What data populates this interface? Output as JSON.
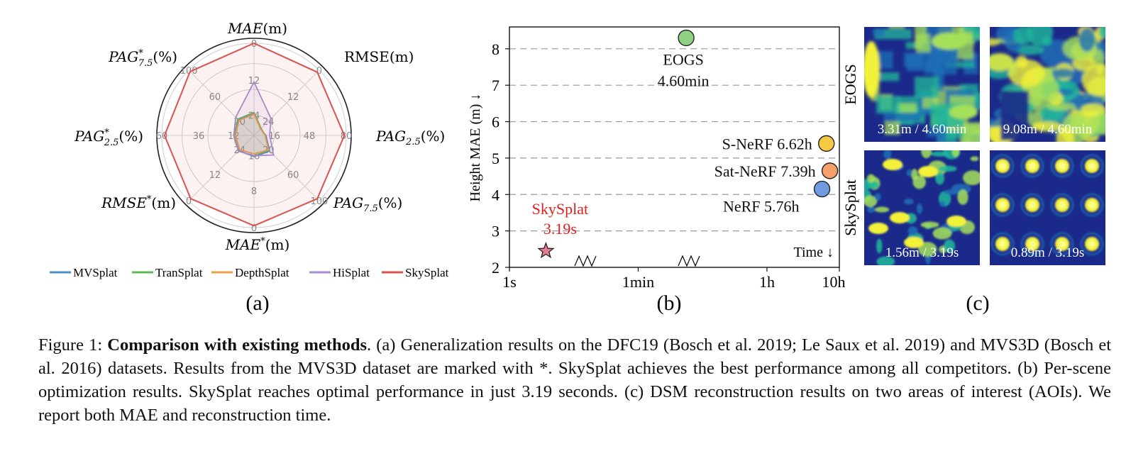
{
  "panel_labels": [
    "(a)",
    "(b)",
    "(c)"
  ],
  "chart_data": [
    {
      "type": "radar",
      "axes": [
        {
          "label": "MAE(m)",
          "ticks": [
            "0",
            "12",
            "24"
          ]
        },
        {
          "label": "RMSE(m)",
          "ticks": [
            "0",
            "12",
            "24"
          ]
        },
        {
          "label": "PAG2.5(%)",
          "ticks": [
            "80",
            "48",
            "16"
          ]
        },
        {
          "label": "PAG7.5(%)",
          "ticks": [
            "100",
            "60",
            "20"
          ]
        },
        {
          "label": "MAE*(m)",
          "ticks": [
            "0",
            "8",
            "16"
          ]
        },
        {
          "label": "RMSE*(m)",
          "ticks": [
            "0",
            "12",
            "24"
          ]
        },
        {
          "label": "PAG*2.5(%)",
          "ticks": [
            "60",
            "36",
            "12"
          ]
        },
        {
          "label": "PAG*7.5(%)",
          "ticks": [
            "100",
            "60",
            "20"
          ]
        }
      ],
      "series": [
        {
          "name": "MVSplat",
          "color": "#4e8fc7",
          "values": [
            0.24,
            0.1,
            0.13,
            0.24,
            0.23,
            0.23,
            0.22,
            0.24
          ]
        },
        {
          "name": "TranSplat",
          "color": "#5cb85c",
          "values": [
            0.25,
            0.11,
            0.12,
            0.23,
            0.22,
            0.24,
            0.21,
            0.25
          ]
        },
        {
          "name": "DepthSplat",
          "color": "#f0a04b",
          "values": [
            0.23,
            0.1,
            0.12,
            0.22,
            0.2,
            0.22,
            0.2,
            0.23
          ]
        },
        {
          "name": "HiSplat",
          "color": "#a98cd4",
          "values": [
            0.58,
            0.26,
            0.17,
            0.3,
            0.22,
            0.24,
            0.22,
            0.28
          ]
        },
        {
          "name": "SkySplat",
          "color": "#d9534f",
          "values": [
            1.0,
            0.97,
            0.98,
            0.97,
            0.98,
            0.97,
            0.97,
            0.98
          ]
        }
      ],
      "legend_position": "bottom"
    },
    {
      "type": "scatter",
      "ylabel": "Height MAE (m)",
      "ylabel_arrow": "↓",
      "x_corner_label": "Time ↓",
      "x_scale": "log",
      "x_ticks": [
        "1s",
        "1min",
        "1h",
        "10h"
      ],
      "y_ticks": [
        "2",
        "3",
        "4",
        "5",
        "6",
        "7",
        "8"
      ],
      "ylim": [
        2,
        8.6
      ],
      "points": [
        {
          "name": "EOGS",
          "time_label": "4.60min",
          "x_seconds": 276,
          "y": 8.3,
          "color": "#8fd081",
          "label_position": "below",
          "marker": "circle"
        },
        {
          "name": "S-NeRF",
          "time_label": "6.62h",
          "x_seconds": 23832,
          "y": 5.4,
          "color": "#f6c945",
          "label_position": "left",
          "marker": "circle"
        },
        {
          "name": "Sat-NeRF",
          "time_label": "7.39h",
          "x_seconds": 26604,
          "y": 4.65,
          "color": "#f4a06b",
          "label_position": "left",
          "marker": "circle"
        },
        {
          "name": "NeRF",
          "time_label": "5.76h",
          "x_seconds": 20736,
          "y": 4.15,
          "color": "#6f9ce0",
          "label_position": "below-left",
          "marker": "circle"
        },
        {
          "name": "SkySplat",
          "time_label": "3.19s",
          "x_seconds": 3.19,
          "y": 2.45,
          "color": "#e57d8e",
          "label_position": "above",
          "label_color": "#e0201e",
          "marker": "star"
        }
      ],
      "break_marks": "zigzag between 1s-1min and 1min-1h"
    }
  ],
  "panel_c": {
    "row_labels": [
      "EOGS",
      "SkySplat"
    ],
    "tiles": [
      {
        "row": "EOGS",
        "caption": "3.31m / 4.60min"
      },
      {
        "row": "EOGS",
        "caption": "9.08m / 4.60min"
      },
      {
        "row": "SkySplat",
        "caption": "1.56m / 3.19s"
      },
      {
        "row": "SkySplat",
        "caption": "0.89m / 3.19s"
      }
    ],
    "colormap": [
      "#1b2a8a",
      "#1e6fb5",
      "#1fb89a",
      "#a6e05a",
      "#f2f23a"
    ]
  },
  "caption": {
    "prefix": "Figure 1: ",
    "title": "Comparison with existing methods",
    "body": ". (a) Generalization results on the DFC19 (Bosch et al. 2019; Le Saux et al. 2019) and MVS3D (Bosch et al. 2016) datasets. Results from the MVS3D dataset are marked with *. SkySplat achieves the best performance among all competitors. (b) Per-scene optimization results. SkySplat reaches optimal performance in just 3.19 seconds. (c) DSM reconstruction results on two areas of interest (AOIs). We report both MAE and reconstruction time."
  }
}
